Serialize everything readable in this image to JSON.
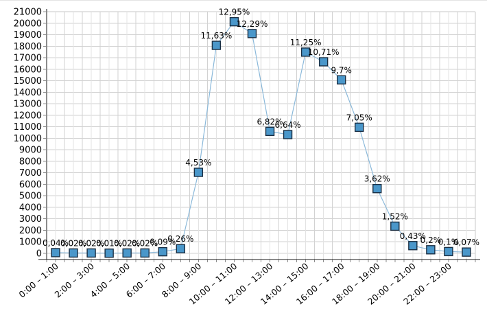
{
  "chart_data": {
    "type": "line",
    "title": "",
    "xlabel": "",
    "ylabel": "",
    "ylim": [
      0,
      21000
    ],
    "y_tick_step": 1000,
    "y_tick_labels": [
      "0",
      "1000",
      "2000",
      "3000",
      "4000",
      "5000",
      "6000",
      "7000",
      "8000",
      "9000",
      "10000",
      "11000",
      "12000",
      "13000",
      "14000",
      "15000",
      "16000",
      "17000",
      "18000",
      "19000",
      "20000",
      "21000"
    ],
    "x_tick_labels": [
      "0:00 – 1:00",
      "2:00 – 3:00",
      "4:00 – 5:00",
      "6:00 – 7:00",
      "8:00 – 9:00",
      "10:00 – 11:00",
      "12:00 – 13:00",
      "14:00 – 15:00",
      "16:00 – 17:00",
      "18:00 – 19:00",
      "20:00 – 21:00",
      "22:00 – 23:00"
    ],
    "x_tick_every": 2,
    "grid": true,
    "legend": "none",
    "marker": "square",
    "label_position": "above",
    "points": [
      {
        "value": 62,
        "label": "0,04%"
      },
      {
        "value": 31,
        "label": "0,02%"
      },
      {
        "value": 31,
        "label": "0,02%"
      },
      {
        "value": 16,
        "label": "0,01%"
      },
      {
        "value": 31,
        "label": "0,02%"
      },
      {
        "value": 31,
        "label": "0,02%"
      },
      {
        "value": 140,
        "label": "0,09%"
      },
      {
        "value": 404,
        "label": "0,26%"
      },
      {
        "value": 7040,
        "label": "4,53%"
      },
      {
        "value": 18075,
        "label": "11,63%"
      },
      {
        "value": 20125,
        "label": "12,95%"
      },
      {
        "value": 19100,
        "label": "12,29%"
      },
      {
        "value": 10600,
        "label": "6,82%"
      },
      {
        "value": 10320,
        "label": "6,64%"
      },
      {
        "value": 17485,
        "label": "11,25%"
      },
      {
        "value": 16645,
        "label": "10,71%"
      },
      {
        "value": 15075,
        "label": "9,7%"
      },
      {
        "value": 10955,
        "label": "7,05%"
      },
      {
        "value": 5625,
        "label": "3,62%"
      },
      {
        "value": 2360,
        "label": "1,52%"
      },
      {
        "value": 670,
        "label": "0,43%"
      },
      {
        "value": 310,
        "label": "0,2%"
      },
      {
        "value": 155,
        "label": "0,1%"
      },
      {
        "value": 110,
        "label": "0,07%"
      }
    ],
    "colors": {
      "marker_fill": "#4a97ca",
      "marker_stroke": "#1a2e42",
      "line": "#8bb9da",
      "grid_major": "#d2d2d2",
      "grid_minor": "#e3e3e3",
      "frame": "#c8c8c8",
      "axis": "#1a1a1a",
      "tick": "#8c8c8c",
      "text": "#000000",
      "background": "#ffffff"
    }
  }
}
